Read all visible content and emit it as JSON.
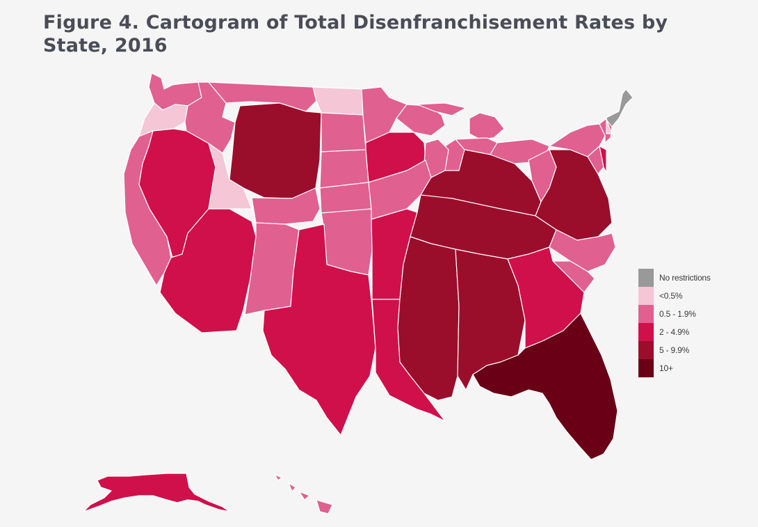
{
  "figure": {
    "title": "Figure 4. Cartogram of Total Disenfranchisement Rates by State, 2016"
  },
  "colors": {
    "no_restrictions": "#999999",
    "lt_0_5": "#f4c6d6",
    "r_0_5_1_9": "#e06090",
    "r_2_4_9": "#d0104a",
    "r_5_9_9": "#9a0e2c",
    "r_10_plus": "#6a0016",
    "background": "#f5f5f5",
    "title": "#4a4d57"
  },
  "legend": {
    "items": [
      {
        "label": "No restrictions",
        "color": "#999999"
      },
      {
        "label": "<0.5%",
        "color": "#f4c6d6"
      },
      {
        "label": "0.5 - 1.9%",
        "color": "#e06090"
      },
      {
        "label": "2 - 4.9%",
        "color": "#d0104a"
      },
      {
        "label": "5 - 9.9%",
        "color": "#9a0e2c"
      },
      {
        "label": "10+",
        "color": "#6a0016"
      }
    ]
  }
}
